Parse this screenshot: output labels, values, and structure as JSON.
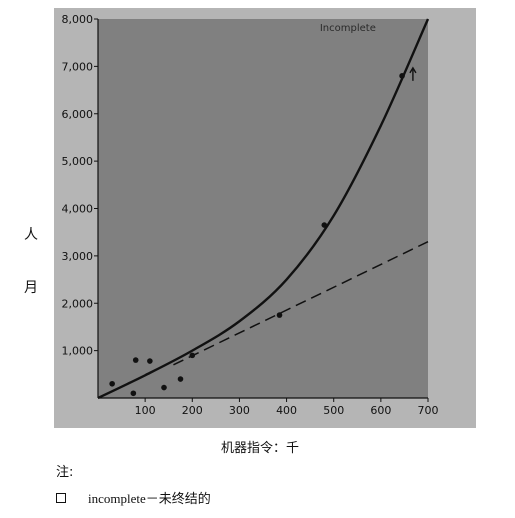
{
  "chart_data": {
    "type": "scatter",
    "ylabel_chars": [
      "人",
      "月"
    ],
    "xlabel": "机器指令：千",
    "xlim": [
      0,
      700
    ],
    "ylim": [
      0,
      8000
    ],
    "x_ticks": [
      100,
      200,
      300,
      400,
      500,
      600,
      700
    ],
    "y_ticks": [
      1000,
      2000,
      3000,
      4000,
      5000,
      6000,
      7000,
      8000
    ],
    "x_tick_labels": [
      "100",
      "200",
      "300",
      "400",
      "500",
      "600",
      "700"
    ],
    "y_tick_labels": [
      "1,000",
      "2,000",
      "3,000",
      "4,000",
      "5,000",
      "6,000",
      "7,000",
      "8,000"
    ],
    "points": [
      {
        "x": 30,
        "y": 300
      },
      {
        "x": 75,
        "y": 100
      },
      {
        "x": 80,
        "y": 800
      },
      {
        "x": 110,
        "y": 780
      },
      {
        "x": 140,
        "y": 220
      },
      {
        "x": 175,
        "y": 400
      },
      {
        "x": 200,
        "y": 900
      },
      {
        "x": 385,
        "y": 1750
      },
      {
        "x": 480,
        "y": 3650
      },
      {
        "x": 645,
        "y": 6800
      }
    ],
    "solid_curve": [
      {
        "x": 0,
        "y": 0
      },
      {
        "x": 100,
        "y": 480
      },
      {
        "x": 200,
        "y": 1000
      },
      {
        "x": 300,
        "y": 1620
      },
      {
        "x": 400,
        "y": 2500
      },
      {
        "x": 500,
        "y": 3850
      },
      {
        "x": 600,
        "y": 5750
      },
      {
        "x": 700,
        "y": 8000
      }
    ],
    "dashed_line": [
      {
        "x": 160,
        "y": 700
      },
      {
        "x": 700,
        "y": 3300
      }
    ],
    "annotation": {
      "text": "Incomplete",
      "x": 530,
      "y": 7750
    },
    "arrow_point": {
      "x": 668,
      "y": 6800
    }
  },
  "note": {
    "title": "注:",
    "item_text": "incomplete－未终结的"
  },
  "colors": {
    "plot_bg": "#808080",
    "frame": "#b5b5b5",
    "ink": "#111111"
  }
}
